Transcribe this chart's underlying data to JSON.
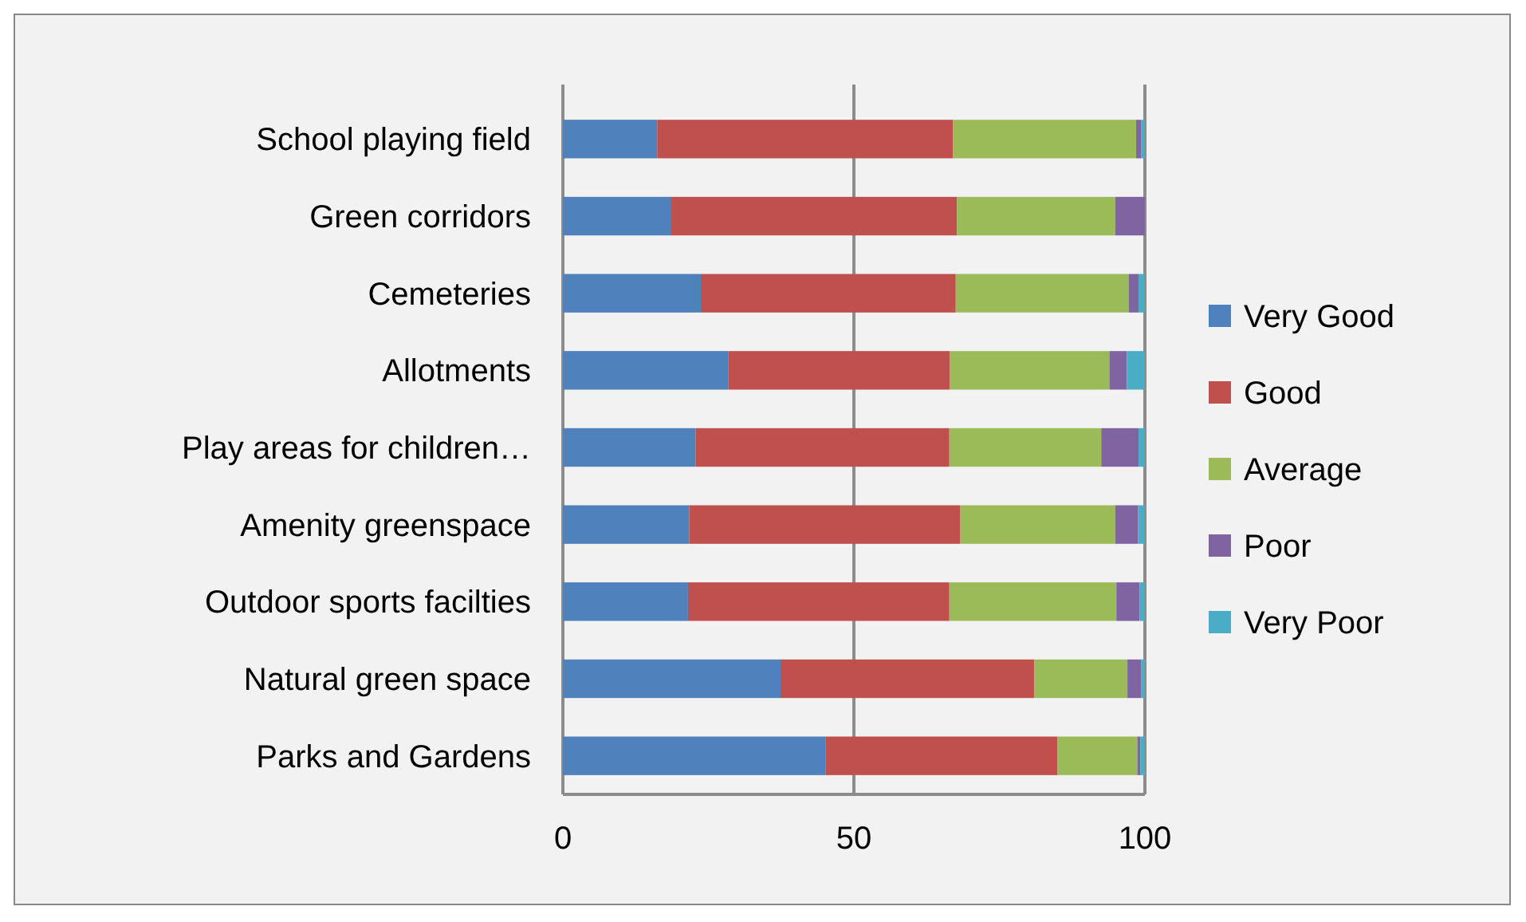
{
  "chart_data": {
    "type": "bar",
    "orientation": "horizontal",
    "stacked": true,
    "categories": [
      "School playing field",
      "Green corridors",
      "Cemeteries",
      "Allotments",
      "Play areas for children…",
      "Amenity greenspace",
      "Outdoor sports facilties",
      "Natural green space",
      "Parks and Gardens"
    ],
    "series": [
      {
        "name": "Very Good",
        "color": "#4f81bd",
        "values": [
          16.2,
          18.5,
          23.7,
          28.4,
          22.8,
          21.7,
          21.5,
          37.4,
          45.1
        ]
      },
      {
        "name": "Good",
        "color": "#c0504d",
        "values": [
          50.8,
          49.2,
          43.8,
          38.1,
          43.6,
          46.6,
          44.9,
          43.6,
          39.9
        ]
      },
      {
        "name": "Average",
        "color": "#9bbb59",
        "values": [
          31.5,
          27.2,
          29.7,
          27.4,
          26.1,
          26.6,
          28.7,
          16.0,
          13.7
        ]
      },
      {
        "name": "Poor",
        "color": "#8064a2",
        "values": [
          0.9,
          5.1,
          1.7,
          3.0,
          6.4,
          3.9,
          4.0,
          2.4,
          0.5
        ]
      },
      {
        "name": "Very Poor",
        "color": "#4bacc6",
        "values": [
          0.6,
          0,
          1.1,
          3.1,
          1.1,
          1.2,
          0.9,
          0.6,
          0.8
        ]
      }
    ],
    "xlim": [
      0,
      100
    ],
    "xticks": [
      0,
      50,
      100
    ],
    "grid": "x",
    "legend": "right"
  }
}
